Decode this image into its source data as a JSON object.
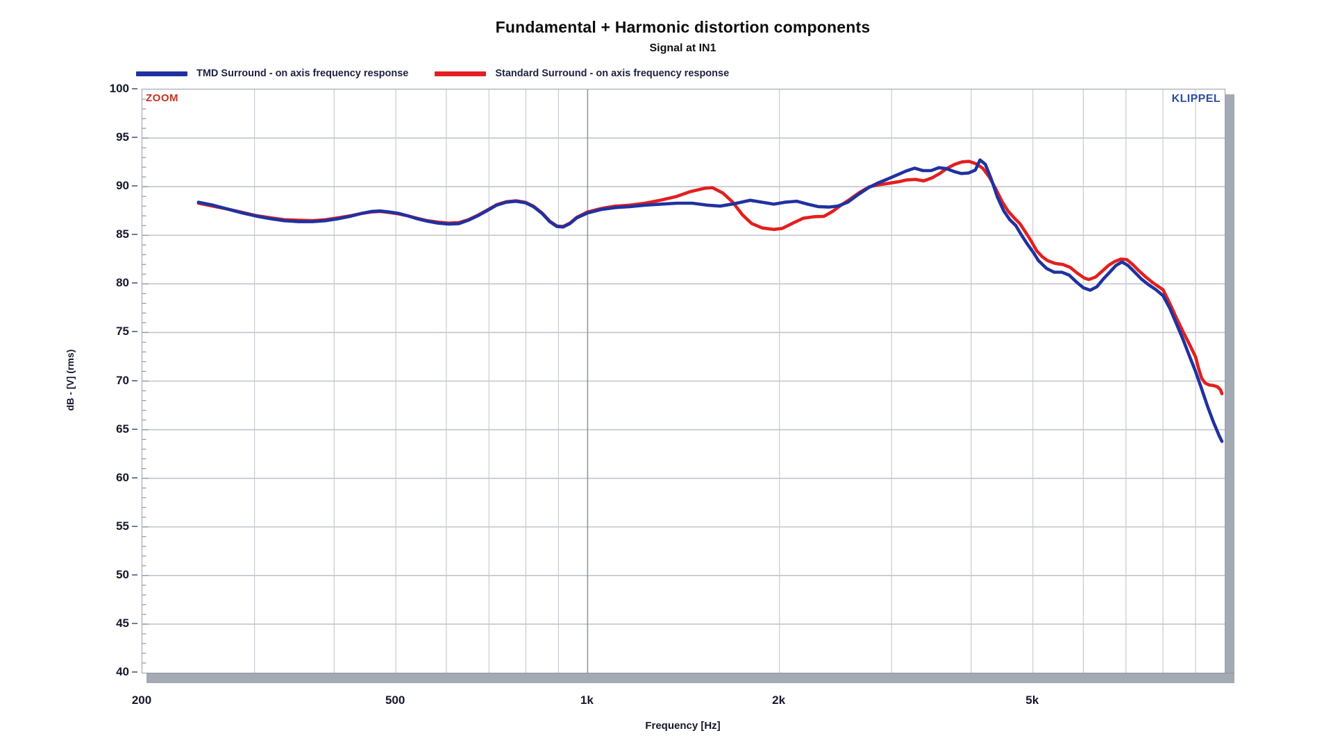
{
  "title": "Fundamental + Harmonic distortion components",
  "subtitle": "Signal at IN1",
  "watermarks": {
    "zoom": "ZOOM",
    "klippel": "KLIPPEL"
  },
  "legend": [
    {
      "label": "TMD Surround - on axis frequency response",
      "color": "#2032a0"
    },
    {
      "label": "Standard Surround - on axis frequency response",
      "color": "#e31f1f"
    }
  ],
  "colors": {
    "blue_curve": "#2032a0",
    "red_curve": "#e31f1f",
    "grid_minor": "#c7cbd1",
    "grid_horizontal": "#c0c5cc",
    "grid_major": "#8d98a6",
    "frame": "#97a0ac",
    "shadow": "#a3aab3",
    "tick_text": "#15182b",
    "title_text": "#0d0d0d",
    "zoom_label": "#c6311f",
    "klippel_logo": "#2b4ea2"
  },
  "chart_data": {
    "type": "line",
    "title": "Fundamental + Harmonic distortion components",
    "subtitle": "Signal at IN1",
    "grid": true,
    "legend_position": "top-left",
    "x_axis": {
      "label": "Frequency [Hz]",
      "scale": "log",
      "min": 200,
      "max": 10000,
      "ticks": [
        {
          "value": 200,
          "label": "200"
        },
        {
          "value": 500,
          "label": "500"
        },
        {
          "value": 1000,
          "label": "1k"
        },
        {
          "value": 2000,
          "label": "2k"
        },
        {
          "value": 5000,
          "label": "5k"
        }
      ],
      "minor_gridlines": [
        300,
        400,
        500,
        600,
        700,
        800,
        900,
        2000,
        3000,
        4000,
        5000,
        6000,
        7000,
        8000,
        9000
      ],
      "major_gridlines": [
        1000
      ]
    },
    "y_axis": {
      "label": "dB - [V]  (rms)",
      "min": 40,
      "max": 100,
      "tick_step": 5,
      "minor_tick_step": 1,
      "ticks": [
        100,
        95,
        90,
        85,
        80,
        75,
        70,
        65,
        60,
        55,
        50,
        45,
        40
      ]
    },
    "series": [
      {
        "name": "TMD Surround - on axis frequency response",
        "color": "#2032a0",
        "points": [
          [
            245,
            88.4
          ],
          [
            258,
            88.1
          ],
          [
            272,
            87.7
          ],
          [
            287,
            87.3
          ],
          [
            303,
            86.95
          ],
          [
            318,
            86.7
          ],
          [
            334,
            86.5
          ],
          [
            352,
            86.4
          ],
          [
            370,
            86.4
          ],
          [
            388,
            86.5
          ],
          [
            406,
            86.7
          ],
          [
            424,
            86.95
          ],
          [
            442,
            87.25
          ],
          [
            458,
            87.45
          ],
          [
            472,
            87.5
          ],
          [
            488,
            87.4
          ],
          [
            505,
            87.25
          ],
          [
            522,
            87.0
          ],
          [
            540,
            86.7
          ],
          [
            560,
            86.45
          ],
          [
            582,
            86.25
          ],
          [
            605,
            86.15
          ],
          [
            628,
            86.2
          ],
          [
            650,
            86.55
          ],
          [
            672,
            87.0
          ],
          [
            696,
            87.55
          ],
          [
            720,
            88.1
          ],
          [
            745,
            88.4
          ],
          [
            772,
            88.5
          ],
          [
            798,
            88.35
          ],
          [
            822,
            87.95
          ],
          [
            848,
            87.25
          ],
          [
            872,
            86.4
          ],
          [
            895,
            85.9
          ],
          [
            915,
            85.85
          ],
          [
            938,
            86.2
          ],
          [
            962,
            86.8
          ],
          [
            1000,
            87.3
          ],
          [
            1050,
            87.65
          ],
          [
            1105,
            87.85
          ],
          [
            1165,
            87.95
          ],
          [
            1230,
            88.1
          ],
          [
            1300,
            88.2
          ],
          [
            1380,
            88.3
          ],
          [
            1460,
            88.3
          ],
          [
            1540,
            88.1
          ],
          [
            1615,
            88.0
          ],
          [
            1700,
            88.25
          ],
          [
            1800,
            88.6
          ],
          [
            1880,
            88.4
          ],
          [
            1960,
            88.2
          ],
          [
            2040,
            88.4
          ],
          [
            2130,
            88.5
          ],
          [
            2215,
            88.2
          ],
          [
            2300,
            87.95
          ],
          [
            2390,
            87.9
          ],
          [
            2470,
            88.0
          ],
          [
            2560,
            88.4
          ],
          [
            2660,
            89.2
          ],
          [
            2760,
            89.9
          ],
          [
            2860,
            90.4
          ],
          [
            2960,
            90.8
          ],
          [
            3060,
            91.2
          ],
          [
            3160,
            91.6
          ],
          [
            3260,
            91.9
          ],
          [
            3360,
            91.65
          ],
          [
            3460,
            91.65
          ],
          [
            3560,
            91.95
          ],
          [
            3660,
            91.85
          ],
          [
            3760,
            91.55
          ],
          [
            3860,
            91.35
          ],
          [
            3960,
            91.4
          ],
          [
            4060,
            91.7
          ],
          [
            4130,
            92.75
          ],
          [
            4210,
            92.3
          ],
          [
            4300,
            90.8
          ],
          [
            4400,
            88.9
          ],
          [
            4500,
            87.5
          ],
          [
            4600,
            86.6
          ],
          [
            4700,
            86.0
          ],
          [
            4800,
            85.0
          ],
          [
            4900,
            84.1
          ],
          [
            5000,
            83.3
          ],
          [
            5100,
            82.4
          ],
          [
            5250,
            81.6
          ],
          [
            5400,
            81.2
          ],
          [
            5550,
            81.2
          ],
          [
            5700,
            80.9
          ],
          [
            5850,
            80.2
          ],
          [
            6000,
            79.6
          ],
          [
            6150,
            79.35
          ],
          [
            6300,
            79.7
          ],
          [
            6450,
            80.5
          ],
          [
            6600,
            81.2
          ],
          [
            6750,
            81.9
          ],
          [
            6900,
            82.25
          ],
          [
            7050,
            81.9
          ],
          [
            7200,
            81.3
          ],
          [
            7400,
            80.5
          ],
          [
            7600,
            79.9
          ],
          [
            7800,
            79.4
          ],
          [
            8000,
            78.8
          ],
          [
            8200,
            77.5
          ],
          [
            8400,
            75.9
          ],
          [
            8600,
            74.3
          ],
          [
            8800,
            72.6
          ],
          [
            9000,
            71.0
          ],
          [
            9200,
            69.2
          ],
          [
            9400,
            67.4
          ],
          [
            9600,
            65.8
          ],
          [
            9800,
            64.4
          ],
          [
            9900,
            63.8
          ]
        ]
      },
      {
        "name": "Standard Surround - on axis frequency response",
        "color": "#e31f1f",
        "points": [
          [
            245,
            88.3
          ],
          [
            258,
            88.0
          ],
          [
            272,
            87.7
          ],
          [
            287,
            87.35
          ],
          [
            303,
            87.0
          ],
          [
            318,
            86.8
          ],
          [
            334,
            86.6
          ],
          [
            352,
            86.55
          ],
          [
            370,
            86.5
          ],
          [
            388,
            86.6
          ],
          [
            406,
            86.8
          ],
          [
            424,
            87.0
          ],
          [
            442,
            87.25
          ],
          [
            458,
            87.4
          ],
          [
            472,
            87.45
          ],
          [
            488,
            87.35
          ],
          [
            505,
            87.2
          ],
          [
            522,
            87.0
          ],
          [
            540,
            86.75
          ],
          [
            560,
            86.5
          ],
          [
            582,
            86.35
          ],
          [
            605,
            86.25
          ],
          [
            628,
            86.3
          ],
          [
            650,
            86.6
          ],
          [
            672,
            87.05
          ],
          [
            696,
            87.6
          ],
          [
            720,
            88.15
          ],
          [
            745,
            88.45
          ],
          [
            772,
            88.55
          ],
          [
            798,
            88.4
          ],
          [
            822,
            88.0
          ],
          [
            848,
            87.3
          ],
          [
            872,
            86.45
          ],
          [
            895,
            85.95
          ],
          [
            915,
            85.9
          ],
          [
            938,
            86.25
          ],
          [
            962,
            86.85
          ],
          [
            1000,
            87.4
          ],
          [
            1050,
            87.75
          ],
          [
            1105,
            88.0
          ],
          [
            1165,
            88.1
          ],
          [
            1230,
            88.3
          ],
          [
            1300,
            88.6
          ],
          [
            1380,
            89.0
          ],
          [
            1450,
            89.5
          ],
          [
            1530,
            89.85
          ],
          [
            1570,
            89.9
          ],
          [
            1630,
            89.35
          ],
          [
            1690,
            88.4
          ],
          [
            1750,
            87.1
          ],
          [
            1810,
            86.2
          ],
          [
            1880,
            85.75
          ],
          [
            1960,
            85.6
          ],
          [
            2020,
            85.7
          ],
          [
            2100,
            86.25
          ],
          [
            2180,
            86.75
          ],
          [
            2260,
            86.9
          ],
          [
            2350,
            86.95
          ],
          [
            2430,
            87.5
          ],
          [
            2500,
            88.1
          ],
          [
            2580,
            88.7
          ],
          [
            2670,
            89.4
          ],
          [
            2770,
            90.0
          ],
          [
            2870,
            90.2
          ],
          [
            2970,
            90.35
          ],
          [
            3070,
            90.5
          ],
          [
            3170,
            90.7
          ],
          [
            3270,
            90.75
          ],
          [
            3370,
            90.6
          ],
          [
            3470,
            90.9
          ],
          [
            3570,
            91.35
          ],
          [
            3670,
            91.9
          ],
          [
            3770,
            92.3
          ],
          [
            3870,
            92.55
          ],
          [
            3970,
            92.6
          ],
          [
            4070,
            92.35
          ],
          [
            4170,
            91.9
          ],
          [
            4270,
            91.0
          ],
          [
            4370,
            89.8
          ],
          [
            4470,
            88.5
          ],
          [
            4570,
            87.5
          ],
          [
            4670,
            86.8
          ],
          [
            4770,
            86.2
          ],
          [
            4870,
            85.3
          ],
          [
            4970,
            84.4
          ],
          [
            5070,
            83.4
          ],
          [
            5170,
            82.8
          ],
          [
            5270,
            82.4
          ],
          [
            5420,
            82.1
          ],
          [
            5570,
            82.0
          ],
          [
            5720,
            81.7
          ],
          [
            5870,
            81.1
          ],
          [
            6020,
            80.6
          ],
          [
            6120,
            80.45
          ],
          [
            6270,
            80.7
          ],
          [
            6420,
            81.3
          ],
          [
            6570,
            81.9
          ],
          [
            6720,
            82.3
          ],
          [
            6870,
            82.55
          ],
          [
            7020,
            82.5
          ],
          [
            7170,
            82.0
          ],
          [
            7320,
            81.4
          ],
          [
            7520,
            80.7
          ],
          [
            7720,
            80.1
          ],
          [
            8000,
            79.4
          ],
          [
            8200,
            78.0
          ],
          [
            8400,
            76.5
          ],
          [
            8600,
            75.1
          ],
          [
            8800,
            73.8
          ],
          [
            9000,
            72.5
          ],
          [
            9100,
            71.3
          ],
          [
            9200,
            70.3
          ],
          [
            9320,
            69.8
          ],
          [
            9450,
            69.6
          ],
          [
            9600,
            69.55
          ],
          [
            9750,
            69.4
          ],
          [
            9850,
            69.1
          ],
          [
            9900,
            68.7
          ]
        ]
      }
    ]
  }
}
